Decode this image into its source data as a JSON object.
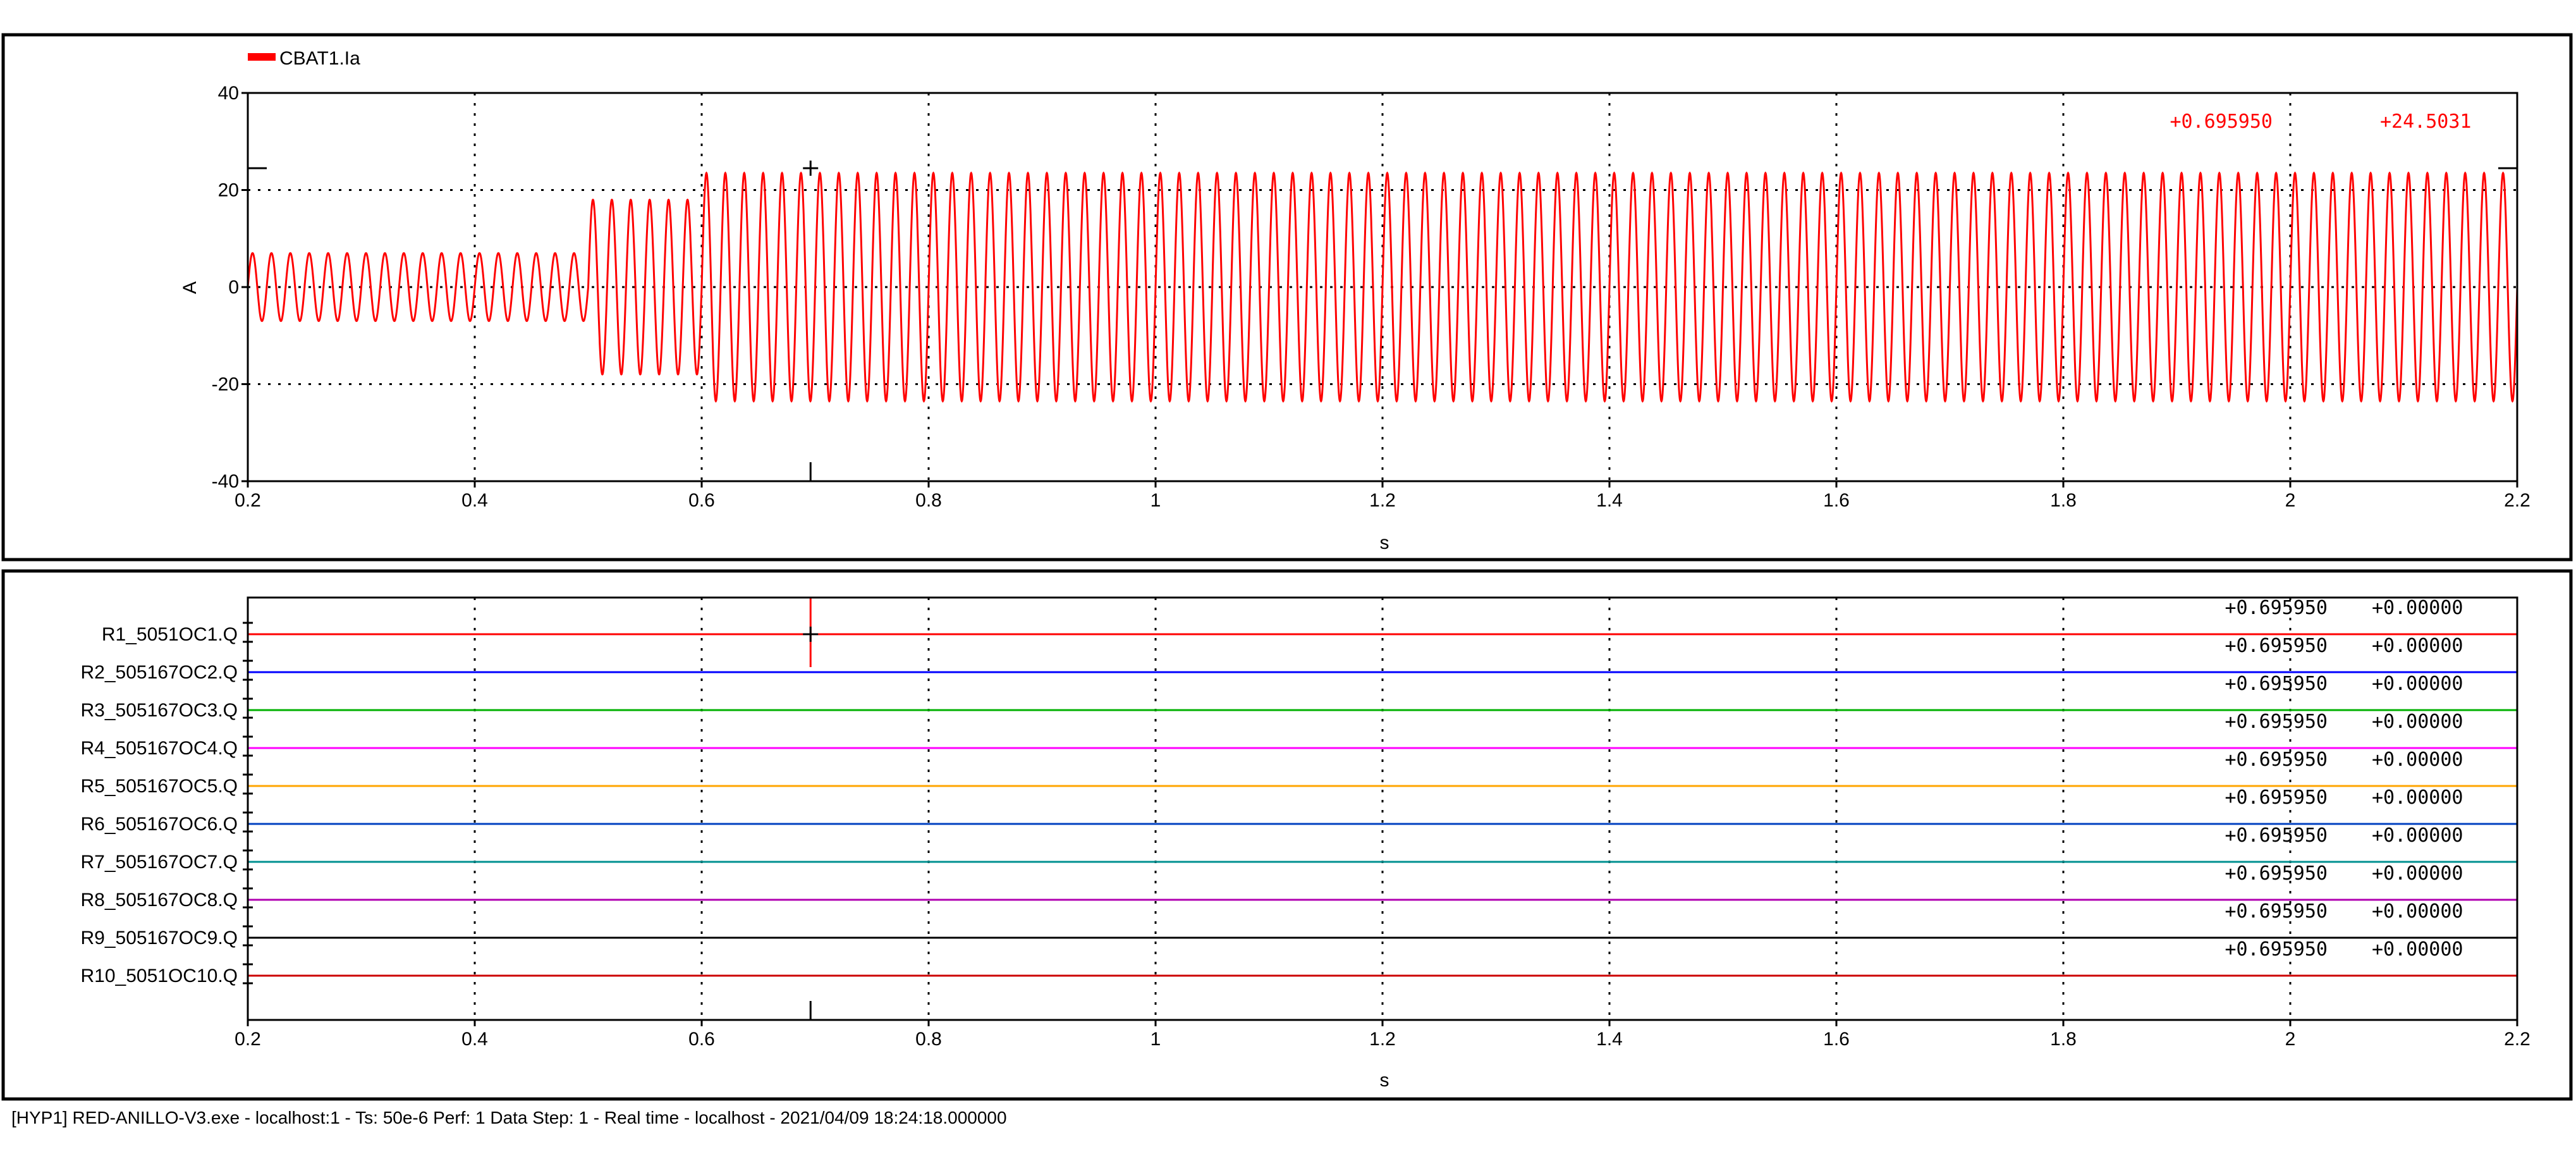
{
  "chart_data": [
    {
      "type": "line",
      "series": [
        {
          "name": "CBAT1.Ia",
          "color": "#ff0000",
          "segments": [
            {
              "x_from": 0.2,
              "x_to": 0.5,
              "amplitude": 7
            },
            {
              "x_from": 0.5,
              "x_to": 0.6,
              "amplitude": 18
            },
            {
              "x_from": 0.6,
              "x_to": 2.2,
              "amplitude": 23.5
            }
          ],
          "frequency_hz": 60
        }
      ],
      "xlabel": "s",
      "ylabel": "A",
      "xlim": [
        0.2,
        2.2
      ],
      "ylim": [
        -40,
        40
      ],
      "x_ticks": [
        "0.2",
        "0.4",
        "0.6",
        "0.8",
        "1",
        "1.2",
        "1.4",
        "1.6",
        "1.8",
        "2",
        "2.2"
      ],
      "y_ticks": [
        "40",
        "20",
        "0",
        "-20",
        "-40"
      ],
      "grid": true,
      "legend": "top-left",
      "cursor": {
        "x": 0.69595,
        "y": 24.5031,
        "x_label": "+0.695950",
        "y_label": "+24.5031"
      }
    },
    {
      "type": "line",
      "xlabel": "s",
      "xlim": [
        0.2,
        2.2
      ],
      "x_ticks": [
        "0.2",
        "0.4",
        "0.6",
        "0.8",
        "1",
        "1.2",
        "1.4",
        "1.6",
        "1.8",
        "2",
        "2.2"
      ],
      "grid": true,
      "cursor": {
        "x": 0.69595
      },
      "series": [
        {
          "name": "R1_5051OC1.Q",
          "color": "#ff0000",
          "value": 0,
          "cursor_x": "+0.695950",
          "cursor_y": "+0.00000"
        },
        {
          "name": "R2_505167OC2.Q",
          "color": "#0000ff",
          "value": 0,
          "cursor_x": "+0.695950",
          "cursor_y": "+0.00000"
        },
        {
          "name": "R3_505167OC3.Q",
          "color": "#00b000",
          "value": 0,
          "cursor_x": "+0.695950",
          "cursor_y": "+0.00000"
        },
        {
          "name": "R4_505167OC4.Q",
          "color": "#ff00ff",
          "value": 0,
          "cursor_x": "+0.695950",
          "cursor_y": "+0.00000"
        },
        {
          "name": "R5_505167OC5.Q",
          "color": "#ffa500",
          "value": 0,
          "cursor_x": "+0.695950",
          "cursor_y": "+0.00000"
        },
        {
          "name": "R6_505167OC6.Q",
          "color": "#0040c0",
          "value": 0,
          "cursor_x": "+0.695950",
          "cursor_y": "+0.00000"
        },
        {
          "name": "R7_505167OC7.Q",
          "color": "#009090",
          "value": 0,
          "cursor_x": "+0.695950",
          "cursor_y": "+0.00000"
        },
        {
          "name": "R8_505167OC8.Q",
          "color": "#b000b0",
          "value": 0,
          "cursor_x": "+0.695950",
          "cursor_y": "+0.00000"
        },
        {
          "name": "R9_505167OC9.Q",
          "color": "#000000",
          "value": 0,
          "cursor_x": "+0.695950",
          "cursor_y": "+0.00000"
        },
        {
          "name": "R10_5051OC10.Q",
          "color": "#cc0000",
          "value": 0,
          "cursor_x": "+0.695950",
          "cursor_y": "+0.00000"
        }
      ]
    }
  ],
  "status_bar": "[HYP1] RED-ANILLO-V3.exe - localhost:1 - Ts: 50e-6 Perf: 1 Data Step: 1 - Real time - localhost - 2021/04/09 18:24:18.000000"
}
